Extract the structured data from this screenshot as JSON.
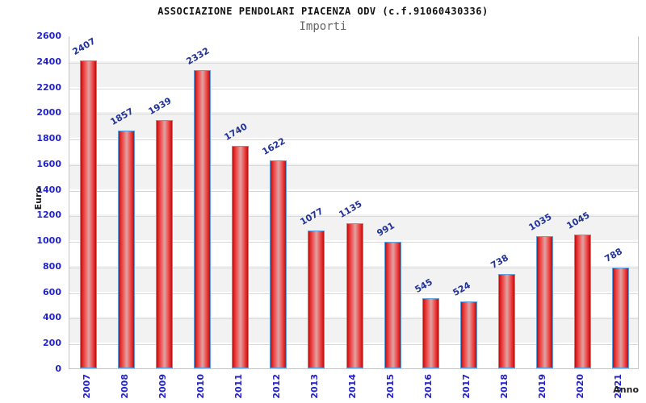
{
  "header": {
    "title": "ASSOCIAZIONE PENDOLARI PIACENZA ODV (c.f.91060430336)",
    "subtitle": "Importi"
  },
  "y_axis": {
    "title": "Euro",
    "ticks": [
      "0",
      "200",
      "400",
      "600",
      "800",
      "1000",
      "1200",
      "1400",
      "1600",
      "1800",
      "2000",
      "2200",
      "2400",
      "2600"
    ]
  },
  "x_axis": {
    "title": "Anno"
  },
  "chart_data": {
    "type": "bar",
    "title": "ASSOCIAZIONE PENDOLARI PIACENZA ODV (c.f.91060430336)",
    "subtitle": "Importi",
    "xlabel": "Anno",
    "ylabel": "Euro",
    "categories": [
      "2007",
      "2008",
      "2009",
      "2010",
      "2011",
      "2012",
      "2013",
      "2014",
      "2015",
      "2016",
      "2017",
      "2018",
      "2019",
      "2020",
      "2021"
    ],
    "values": [
      2407,
      1857,
      1939,
      2332,
      1740,
      1622,
      1077,
      1135,
      991,
      545,
      524,
      738,
      1035,
      1045,
      788
    ],
    "ylim": [
      0,
      2600
    ],
    "ytick_step": 200,
    "grid": "horizontal gridlines with alternating gray/white bands",
    "legend_position": "none",
    "bar_value_labels_rotation_deg": -30,
    "x_tick_rotation_deg": -90
  },
  "colors": {
    "bar_fill_edge": "#b50f0f",
    "bar_fill_mid": "#dda4a4",
    "bar_border": "#5aa0e0",
    "value_label": "#223399",
    "axis_tick_label": "#2222cc",
    "band_gray": "#f2f2f2",
    "gridline": "#d9d9d9",
    "plot_border": "#c4c4c4",
    "title_color": "#111111",
    "subtitle_color": "#666666"
  }
}
